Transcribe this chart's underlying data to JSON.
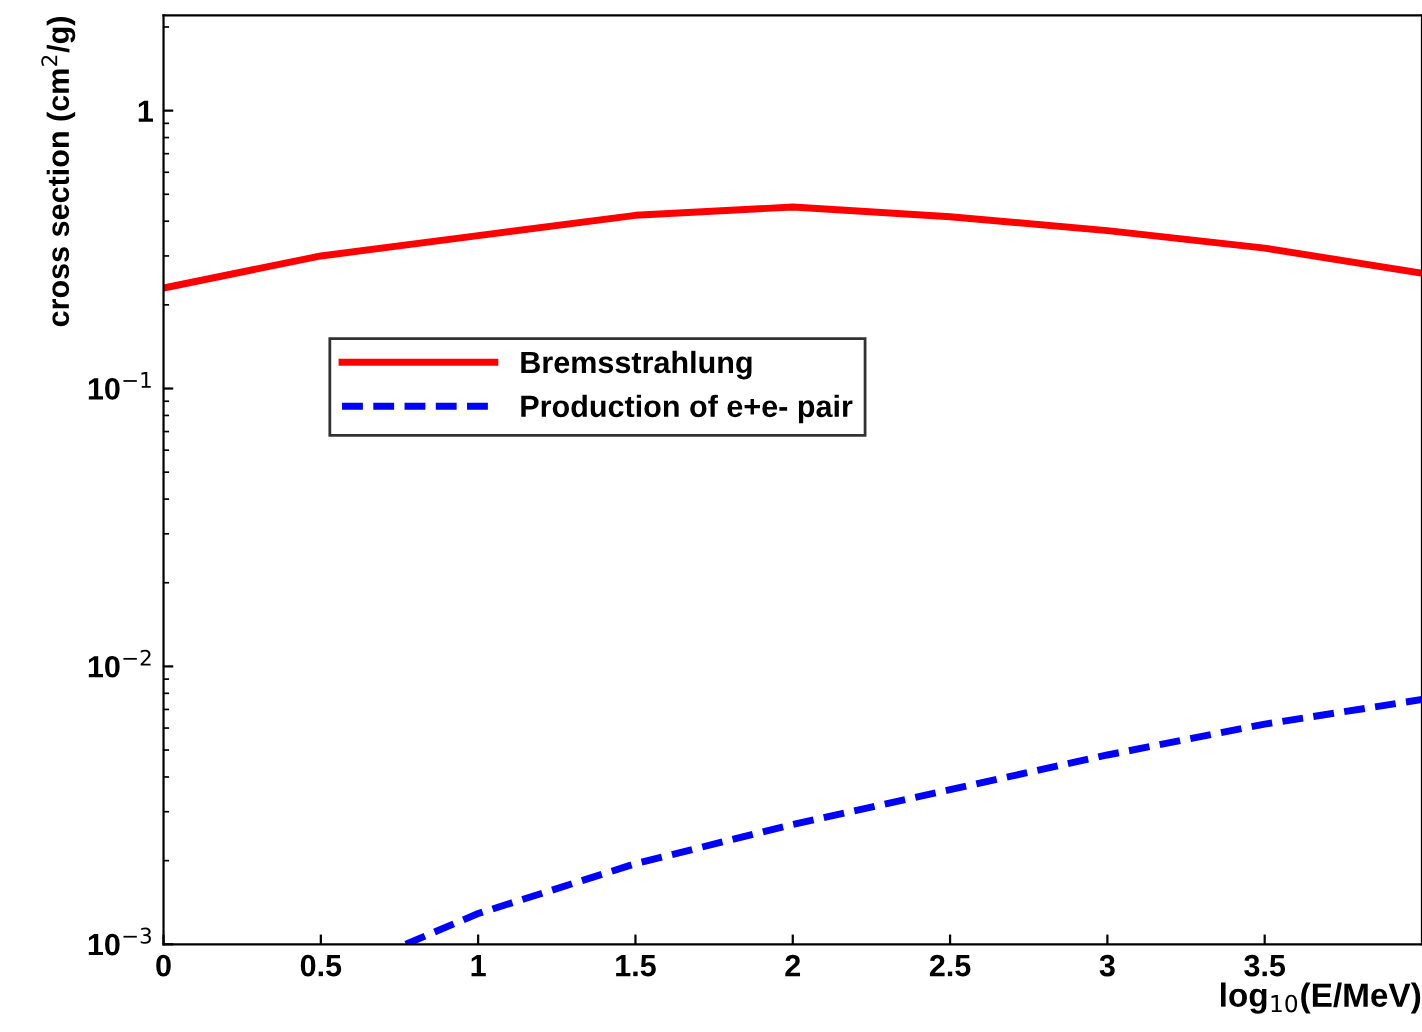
{
  "chart_data": {
    "type": "line",
    "xlabel": "log$_{10}$(E/MeV)",
    "ylabel": "cross section (cm$^{2}$/g)",
    "log": "y",
    "legend": "center left",
    "grid": false,
    "xlim": [
      0,
      4
    ],
    "ylim": [
      0.001,
      2.2
    ],
    "xticks": [
      0,
      0.5,
      1,
      1.5,
      2,
      2.5,
      3,
      3.5
    ],
    "yticks": [
      {
        "value": 0.001,
        "label": "10$^{−3}$"
      },
      {
        "value": 0.01,
        "label": "10$^{−2}$"
      },
      {
        "value": 0.1,
        "label": "10$^{−1}$"
      },
      1
    ],
    "series": [
      {
        "name": "Bremsstrahlung",
        "color": "#ff0000",
        "line_style": "solid",
        "x": [
          0,
          0.5,
          1,
          1.5,
          2,
          2.5,
          3,
          3.5,
          4
        ],
        "values": [
          0.23,
          0.3,
          0.355,
          0.42,
          0.45,
          0.415,
          0.37,
          0.32,
          0.26
        ]
      },
      {
        "name": "Production of e+e- pair",
        "color": "#0000ff",
        "line_style": "dashed",
        "x": [
          0.77,
          1,
          1.5,
          2,
          2.5,
          3,
          3.5,
          4
        ],
        "values": [
          0.001,
          0.00129,
          0.00195,
          0.0027,
          0.0036,
          0.0048,
          0.0062,
          0.0076
        ]
      }
    ]
  }
}
